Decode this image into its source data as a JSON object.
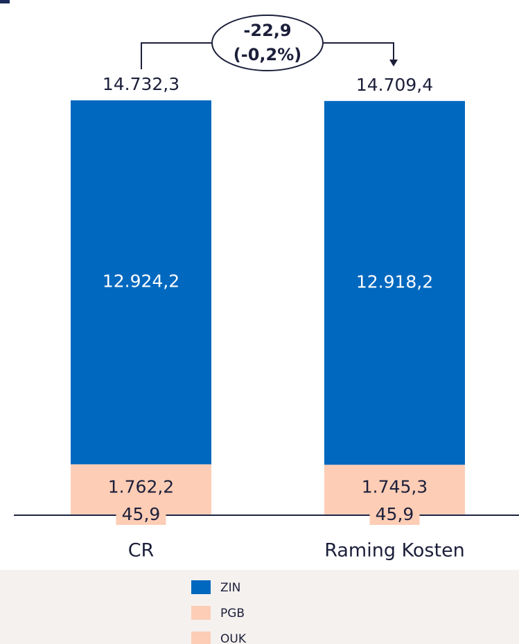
{
  "chart_data": {
    "type": "stacked_bar",
    "categories": [
      "CR",
      "Raming Kosten"
    ],
    "series": [
      {
        "name": "OUK",
        "color": "#fdcdb6",
        "values": [
          45.9,
          45.9
        ],
        "value_labels": [
          "45,9",
          "45,9"
        ]
      },
      {
        "name": "PGB",
        "color": "#fdcdb6",
        "values": [
          1762.2,
          1745.3
        ],
        "value_labels": [
          "1.762,2",
          "1.745,3"
        ]
      },
      {
        "name": "ZIN",
        "color": "#0068bf",
        "values": [
          12924.2,
          12918.2
        ],
        "value_labels": [
          "12.924,2",
          "12.918,2"
        ]
      }
    ],
    "totals": [
      14732.3,
      14709.4
    ],
    "total_labels": [
      "14.732,3",
      "14.709,4"
    ],
    "annotation": [
      "-22,9",
      "(-0,2%)"
    ],
    "legend_order": [
      "ZIN",
      "PGB",
      "OUK"
    ],
    "ylim": [
      0,
      15000
    ]
  }
}
